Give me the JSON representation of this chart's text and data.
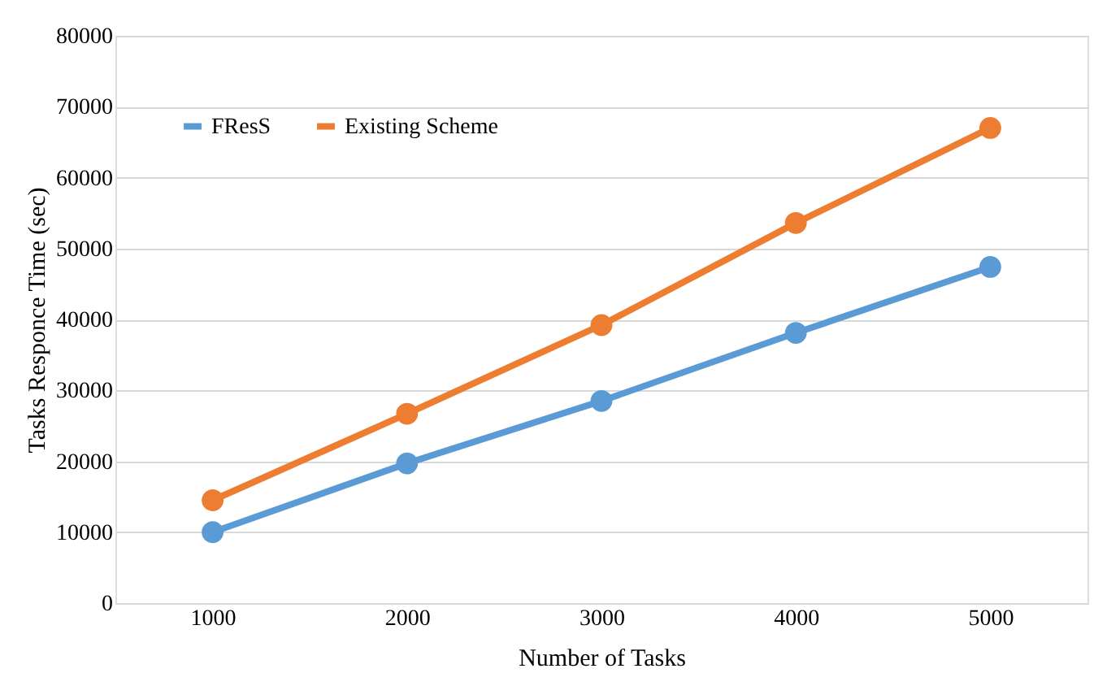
{
  "chart_data": {
    "type": "line",
    "xlabel": "Number of Tasks",
    "ylabel": "Tasks Responce Time (sec)",
    "categories": [
      "1000",
      "2000",
      "3000",
      "4000",
      "5000"
    ],
    "series": [
      {
        "name": "FResS",
        "color": "#5b9bd5",
        "values": [
          10000,
          19700,
          28500,
          38100,
          47400
        ]
      },
      {
        "name": "Existing Scheme",
        "color": "#ed7d31",
        "values": [
          14500,
          26700,
          39200,
          53600,
          67000
        ]
      }
    ],
    "ylim": [
      0,
      80000
    ],
    "yticks": [
      0,
      10000,
      20000,
      30000,
      40000,
      50000,
      60000,
      70000,
      80000
    ],
    "grid": "y",
    "legend": "top left",
    "marker": "circle",
    "line_style": "solid"
  }
}
